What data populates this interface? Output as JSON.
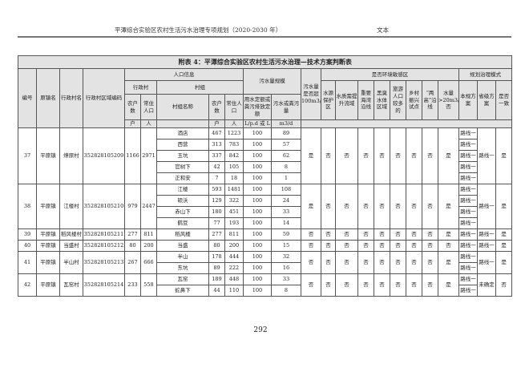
{
  "header": {
    "doc_title": "平潭综合实验区农村生活污水治理专项规划（2020-2030 年）",
    "section": "文本"
  },
  "table": {
    "title": "附表 4：平潭综合实验区农村生活污水治理—技术方案判断表",
    "h": {
      "no": "编号",
      "town": "原镇名",
      "village": "行政村名",
      "code": "行政村区域编码",
      "pop": "人口信息",
      "admin": "行政村",
      "group": "村组",
      "hh": "农户数",
      "res": "常住人口",
      "gname": "村组名称",
      "ghh": "农户数",
      "gres": "常住人口",
      "scale": "污水量规模",
      "quota": "用水定额或粪污排放定额",
      "sew": "污水或粪污量",
      "over": "污水量是否超100m3/d",
      "sens": "是否环境敏感区",
      "s1": "水源保护区",
      "s2": "水质需提升流域",
      "s3": "重要海湾沿线",
      "s4": "黑臭水体区域",
      "s5": "旅游人口较多的",
      "s6": "乡村振兴试点",
      "s7": "“两高”沿线",
      "s8": "水量>20m3/d 否",
      "mode": "规划治理模式",
      "m1": "本规方案",
      "m2": "省级方案",
      "m3": "是否一致",
      "u_hh": "户",
      "u_res": "人",
      "u_ghh": "户",
      "u_gres": "人",
      "u_quota": "L/p.d 或 L",
      "u_sew": "m3/d"
    },
    "rows": [
      {
        "no": "37",
        "town": "平原镇",
        "village": "燎原村",
        "code": "352828105209",
        "hh": "1166",
        "res": "2971",
        "sens": [
          "是",
          "否",
          "否",
          "否",
          "否",
          "否",
          "否",
          "否",
          "是"
        ],
        "m2": "路线一",
        "m3": "是",
        "groups": [
          {
            "name": "酒店",
            "hh": "467",
            "res": "1223",
            "quota": "100",
            "sew": "89",
            "m1": "路线一"
          },
          {
            "name": "西营",
            "hh": "313",
            "res": "783",
            "quota": "100",
            "sew": "57",
            "m1": "路线一"
          },
          {
            "name": "玉坑",
            "hh": "337",
            "res": "842",
            "quota": "100",
            "sew": "62",
            "m1": "路线一"
          },
          {
            "name": "官树下",
            "hh": "42",
            "res": "105",
            "quota": "100",
            "sew": "8",
            "m1": "路线一"
          },
          {
            "name": "正和安",
            "hh": "7",
            "res": "18",
            "quota": "100",
            "sew": "1",
            "m1": "路线一"
          }
        ]
      },
      {
        "no": "38",
        "town": "平原镇",
        "village": "江楼村",
        "code": "352828105210",
        "hh": "979",
        "res": "2447",
        "sens": [
          "是",
          "否",
          "否",
          "否",
          "否",
          "否",
          "否",
          "否",
          "是"
        ],
        "m2": "路线一",
        "m3": "是",
        "groups": [
          {
            "name": "江楼",
            "hh": "593",
            "res": "1481",
            "quota": "100",
            "sew": "108",
            "m1": "路线一"
          },
          {
            "name": "硕沃",
            "hh": "129",
            "res": "322",
            "quota": "100",
            "sew": "24",
            "m1": "路线一"
          },
          {
            "name": "赤山下",
            "hh": "180",
            "res": "451",
            "quota": "100",
            "sew": "33",
            "m1": "路线一"
          },
          {
            "name": "鹤豆",
            "hh": "77",
            "res": "193",
            "quota": "100",
            "sew": "14",
            "m1": "路线一"
          }
        ]
      },
      {
        "no": "39",
        "town": "平原镇",
        "village": "稻风楼村",
        "code": "352828105211",
        "hh": "277",
        "res": "811",
        "sens": [
          "否",
          "否",
          "否",
          "否",
          "否",
          "否",
          "否",
          "否",
          "是"
        ],
        "m2": "路线一",
        "m3": "是",
        "groups": [
          {
            "name": "稻风楼",
            "hh": "277",
            "res": "811",
            "quota": "100",
            "sew": "59",
            "m1": "路线一"
          }
        ]
      },
      {
        "no": "40",
        "town": "平原镇",
        "village": "当盛村",
        "code": "352828105212",
        "hh": "80",
        "res": "200",
        "sens": [
          "否",
          "否",
          "否",
          "否",
          "否",
          "否",
          "否",
          "否",
          "否"
        ],
        "m2": "路线一",
        "m3": "是",
        "groups": [
          {
            "name": "当盛",
            "hh": "80",
            "res": "200",
            "quota": "100",
            "sew": "15",
            "m1": "路线一"
          }
        ]
      },
      {
        "no": "41",
        "town": "平原镇",
        "village": "半山村",
        "code": "352828105213",
        "hh": "267",
        "res": "666",
        "sens": [
          "否",
          "否",
          "否",
          "否",
          "否",
          "否",
          "否",
          "否",
          "是"
        ],
        "m2": "路线一",
        "m3": "是",
        "groups": [
          {
            "name": "半山",
            "hh": "178",
            "res": "444",
            "quota": "100",
            "sew": "32",
            "m1": "路线一"
          },
          {
            "name": "东坑",
            "hh": "89",
            "res": "222",
            "quota": "100",
            "sew": "16",
            "m1": "路线一"
          }
        ]
      },
      {
        "no": "42",
        "town": "平原镇",
        "village": "瓦窑村",
        "code": "352828105214",
        "hh": "233",
        "res": "558",
        "sens": [
          "否",
          "否",
          "否",
          "否",
          "否",
          "否",
          "否",
          "否",
          "是"
        ],
        "m2": "未确定",
        "m3": "否",
        "groups": [
          {
            "name": "瓦窑",
            "hh": "189",
            "res": "448",
            "quota": "100",
            "sew": "33",
            "m1": "路线一"
          },
          {
            "name": "蛇鼻下",
            "hh": "44",
            "res": "110",
            "quota": "100",
            "sew": "8",
            "m1": "路线一"
          }
        ]
      }
    ]
  },
  "page_number": "292"
}
